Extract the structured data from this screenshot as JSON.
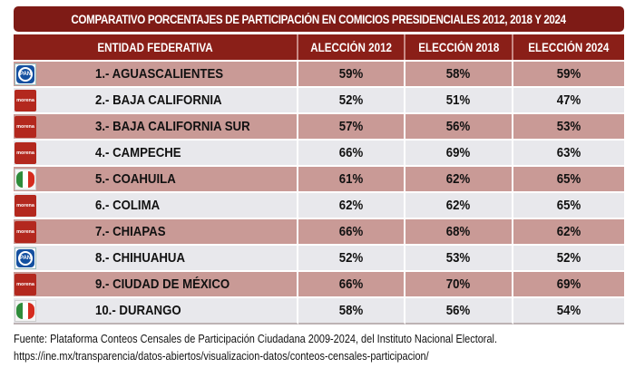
{
  "title": "COMPARATIVO PORCENTAJES DE PARTICIPACIÓN EN COMICIOS PRESIDENCIALES 2012,  2018 Y 2024",
  "colors": {
    "header_bg": "#8a1f18",
    "row_odd": "#c99a96",
    "row_even": "#e8e8ec",
    "pan_blue": "#1450a0",
    "morena_red": "#b3281e",
    "pri_green": "#2e8b3a",
    "pri_red": "#d52b1e"
  },
  "table": {
    "headers": [
      "ENTIDAD FEDERATIVA",
      "ALECCIÓN 2012",
      "ELECCIÓN 2018",
      "ELECCIÓN 2024"
    ],
    "rows": [
      {
        "party": "PAN",
        "entity": "1.- AGUASCALIENTES",
        "v2012": "59%",
        "v2018": "58%",
        "v2024": "59%"
      },
      {
        "party": "morena",
        "entity": "2.- BAJA CALIFORNIA",
        "v2012": "52%",
        "v2018": "51%",
        "v2024": "47%"
      },
      {
        "party": "morena",
        "entity": "3.- BAJA CALIFORNIA SUR",
        "v2012": "57%",
        "v2018": "56%",
        "v2024": "53%"
      },
      {
        "party": "morena",
        "entity": "4.- CAMPECHE",
        "v2012": "66%",
        "v2018": "69%",
        "v2024": "63%"
      },
      {
        "party": "PRI",
        "entity": "5.- COAHUILA",
        "v2012": "61%",
        "v2018": "62%",
        "v2024": "65%"
      },
      {
        "party": "morena",
        "entity": "6.- COLIMA",
        "v2012": "62%",
        "v2018": "62%",
        "v2024": "65%"
      },
      {
        "party": "morena",
        "entity": "7.- CHIAPAS",
        "v2012": "66%",
        "v2018": "68%",
        "v2024": "62%"
      },
      {
        "party": "PAN",
        "entity": "8.- CHIHUAHUA",
        "v2012": "52%",
        "v2018": "53%",
        "v2024": "52%"
      },
      {
        "party": "morena",
        "entity": "9.- CIUDAD DE MÉXICO",
        "v2012": "66%",
        "v2018": "70%",
        "v2024": "69%"
      },
      {
        "party": "PRI",
        "entity": "10.- DURANGO",
        "v2012": "58%",
        "v2018": "56%",
        "v2024": "54%"
      }
    ]
  },
  "footer": {
    "source": "Fuente: Plataforma Conteos Censales de Participación Ciudadana 2009-2024, del Instituto Nacional Electoral.",
    "url": "https://ine.mx/transparencia/datos-abiertos/visualizacion-datos/conteos-censales-participacion/"
  }
}
